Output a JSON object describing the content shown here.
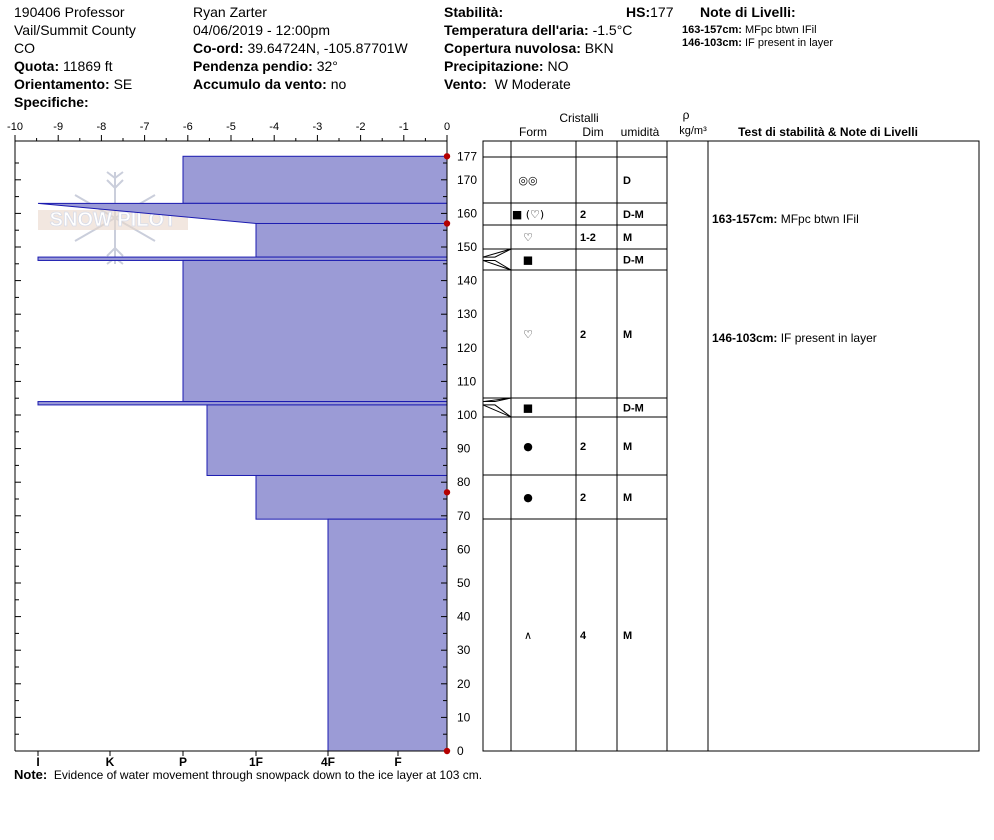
{
  "header": {
    "col1": [
      "190406 Professor",
      "Vail/Summit County",
      "CO"
    ],
    "quota_label": "Quota:",
    "quota_value": "11869 ft",
    "orient_label": "Orientamento:",
    "orient_value": "SE",
    "spec_label": "Specifiche:",
    "observer": "Ryan Zarter",
    "datetime": "04/06/2019 - 12:00pm",
    "coord_label": "Co-ord:",
    "coord_value": "39.64724N, -105.87701W",
    "slope_label": "Pendenza pendio:",
    "slope_value": "32°",
    "wind_load_label": "Accumulo da vento:",
    "wind_load_value": "no",
    "stab_label": "Stabilità:",
    "hs_label": "HS:",
    "hs_value": "177",
    "air_label": "Temperatura dell'aria:",
    "air_value": "-1.5°C",
    "cloud_label": "Copertura nuvolosa:",
    "cloud_value": "BKN",
    "precip_label": "Precipitazione:",
    "precip_value": "NO",
    "wind_label": "Vento:",
    "wind_value": "W Moderate",
    "notes_title": "Note di Livelli:",
    "layer_notes": [
      {
        "range": "163-157cm:",
        "text": "MFpc btwn IFil"
      },
      {
        "range": "146-103cm:",
        "text": "IF present in layer"
      }
    ]
  },
  "columns": {
    "crystals": "Cristalli",
    "form": "Form",
    "dim": "Dim",
    "moisture": "umidità",
    "rho": "ρ",
    "rho_unit": "kg/m³",
    "tests": "Test di stabilità & Note di Livelli"
  },
  "watermark": "SNOW PILOT",
  "note_label": "Note:",
  "note_text": "Evidence of water movement through snowpack down to the ice layer at 103 cm.",
  "colors": {
    "hardness_fill": "#9b9bd6",
    "hardness_stroke": "#1b1bb0",
    "temp_point": "#b40000"
  },
  "chart_data": {
    "type": "area",
    "temp_axis": {
      "ticks": [
        -10,
        -9,
        -8,
        -7,
        -6,
        -5,
        -4,
        -3,
        -2,
        -1,
        0
      ],
      "range": [
        -10,
        0
      ]
    },
    "hardness_axis": {
      "labels": [
        "I",
        "K",
        "P",
        "1F",
        "4F",
        "F"
      ]
    },
    "height_axis": {
      "range": [
        0,
        177
      ],
      "ticks": [
        0,
        10,
        20,
        30,
        40,
        50,
        60,
        70,
        80,
        90,
        100,
        110,
        120,
        130,
        140,
        150,
        160,
        170,
        177
      ]
    },
    "hardness_profile": [
      {
        "top": 177,
        "bottom": 163,
        "hardness": "P"
      },
      {
        "top": 163,
        "bottom": 157,
        "hardness": "I-1F",
        "slanted": true
      },
      {
        "top": 157,
        "bottom": 147,
        "hardness": "1F"
      },
      {
        "top": 147,
        "bottom": 146,
        "hardness": "I"
      },
      {
        "top": 146,
        "bottom": 104,
        "hardness": "P"
      },
      {
        "top": 104,
        "bottom": 103,
        "hardness": "I"
      },
      {
        "top": 103,
        "bottom": 82,
        "hardness": "P+"
      },
      {
        "top": 82,
        "bottom": 69,
        "hardness": "1F"
      },
      {
        "top": 69,
        "bottom": 0,
        "hardness": "4F"
      }
    ],
    "temperature_points": [
      {
        "height": 177,
        "temp": 0
      },
      {
        "height": 157,
        "temp": 0
      },
      {
        "height": 77,
        "temp": 0
      },
      {
        "height": 0,
        "temp": 0
      }
    ],
    "layers": [
      {
        "top": 177,
        "bottom": 163,
        "form": "◎◎",
        "size": "",
        "moisture": "D"
      },
      {
        "top": 163,
        "bottom": 157,
        "form": "■ (♡)",
        "size": "2",
        "moisture": "D-M"
      },
      {
        "top": 157,
        "bottom": 147,
        "form": "♡",
        "size": "1-2",
        "moisture": "M"
      },
      {
        "top": 147,
        "bottom": 146,
        "form": "■",
        "size": "",
        "moisture": "D-M"
      },
      {
        "top": 146,
        "bottom": 104,
        "form": "♡",
        "size": "2",
        "moisture": "M"
      },
      {
        "top": 104,
        "bottom": 103,
        "form": "■",
        "size": "",
        "moisture": "D-M"
      },
      {
        "top": 103,
        "bottom": 82,
        "form": "●",
        "size": "2",
        "moisture": "M"
      },
      {
        "top": 82,
        "bottom": 69,
        "form": "●",
        "size": "2",
        "moisture": "M"
      },
      {
        "top": 69,
        "bottom": 0,
        "form": "∧",
        "size": "4",
        "moisture": "M"
      }
    ],
    "layer_notes": [
      {
        "height": 160,
        "range": "163-157cm:",
        "text": "MFpc btwn IFil"
      },
      {
        "height": 125,
        "range": "146-103cm:",
        "text": "IF present in layer"
      }
    ]
  }
}
